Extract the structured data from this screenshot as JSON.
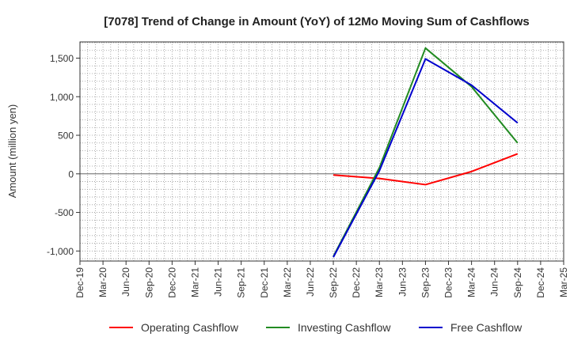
{
  "chart_data": {
    "type": "line",
    "title": "[7078]  Trend of Change in Amount (YoY) of 12Mo Moving Sum of Cashflows",
    "xlabel": "",
    "ylabel": "Amount (million yen)",
    "ylim": [
      -1130,
      1710
    ],
    "yticks": [
      -1000,
      -500,
      0,
      500,
      1000,
      1500
    ],
    "ytick_labels": [
      "-1,000",
      "-500",
      "0",
      "500",
      "1,000",
      "1,500"
    ],
    "x_categories": [
      "Dec-19",
      "Mar-20",
      "Jun-20",
      "Sep-20",
      "Dec-20",
      "Mar-21",
      "Jun-21",
      "Sep-21",
      "Dec-21",
      "Mar-22",
      "Jun-22",
      "Sep-22",
      "Dec-22",
      "Mar-23",
      "Jun-23",
      "Sep-23",
      "Dec-23",
      "Mar-24",
      "Jun-24",
      "Sep-24",
      "Dec-24",
      "Mar-25"
    ],
    "grid": true,
    "legend_position": "bottom",
    "series": [
      {
        "name": "Operating Cashflow",
        "color": "#ff0000",
        "x": [
          "Sep-22",
          "Mar-23",
          "Sep-23",
          "Mar-24",
          "Sep-24"
        ],
        "values": [
          -15,
          -60,
          -140,
          30,
          260
        ]
      },
      {
        "name": "Investing Cashflow",
        "color": "#228b22",
        "x": [
          "Sep-22",
          "Mar-23",
          "Sep-23",
          "Mar-24",
          "Sep-24"
        ],
        "values": [
          -1070,
          80,
          1630,
          1130,
          400
        ]
      },
      {
        "name": "Free Cashflow",
        "color": "#0000cd",
        "x": [
          "Sep-22",
          "Mar-23",
          "Sep-23",
          "Mar-24",
          "Sep-24"
        ],
        "values": [
          -1080,
          40,
          1490,
          1150,
          660
        ]
      }
    ]
  }
}
